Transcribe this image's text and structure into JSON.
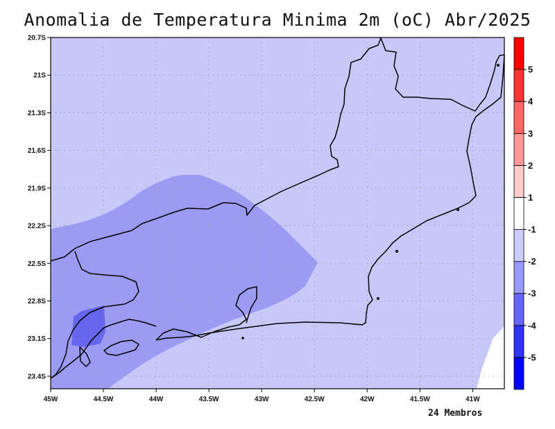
{
  "title": "Anomalia de Temperatura Minima 2m (oC) Abr/2025",
  "footnote": "24 Membros",
  "chart_data": {
    "type": "heatmap",
    "title": "Anomalia de Temperatura Minima 2m (oC) Abr/2025",
    "units": "oC",
    "lon_range": [
      -45,
      -40.7
    ],
    "lat_range": [
      -23.5,
      -20.7
    ],
    "xticks": [
      {
        "value": -45,
        "label": "45W"
      },
      {
        "value": -44.5,
        "label": "44.5W"
      },
      {
        "value": -44,
        "label": "44W"
      },
      {
        "value": -43.5,
        "label": "43.5W"
      },
      {
        "value": -43,
        "label": "43W"
      },
      {
        "value": -42.5,
        "label": "42.5W"
      },
      {
        "value": -42,
        "label": "42W"
      },
      {
        "value": -41.5,
        "label": "41.5W"
      },
      {
        "value": -41,
        "label": "41W"
      }
    ],
    "yticks": [
      {
        "value": -20.7,
        "label": "20.7S"
      },
      {
        "value": -21,
        "label": "21S"
      },
      {
        "value": -21.3,
        "label": "21.3S"
      },
      {
        "value": -21.6,
        "label": "21.6S"
      },
      {
        "value": -21.9,
        "label": "21.9S"
      },
      {
        "value": -22.2,
        "label": "22.2S"
      },
      {
        "value": -22.5,
        "label": "22.5S"
      },
      {
        "value": -22.8,
        "label": "22.8S"
      },
      {
        "value": -23.1,
        "label": "23.1S"
      },
      {
        "value": -23.4,
        "label": "23.4S"
      }
    ],
    "grid": true,
    "colorbar": {
      "bins": [
        {
          "color": "#0000ff"
        },
        {
          "color": "#3333ff"
        },
        {
          "color": "#6666ff"
        },
        {
          "color": "#9999ff"
        },
        {
          "color": "#ccccff"
        },
        {
          "color": "#ffffff"
        },
        {
          "color": "#ffcccc"
        },
        {
          "color": "#ff9999"
        },
        {
          "color": "#ff6666"
        },
        {
          "color": "#ff3333"
        },
        {
          "color": "#ff0000"
        }
      ],
      "labels": [
        "-5",
        "-4",
        "-3",
        "-2",
        "-1",
        "1",
        "2",
        "3",
        "4",
        "5"
      ]
    },
    "field_regions": [
      {
        "class": "-2 to -1",
        "color": "#c8c8f8",
        "description": "background over most of domain"
      },
      {
        "class": "-3 to -2",
        "color": "#9b9bf4",
        "description": "southwest region"
      },
      {
        "class": "-4 to -3",
        "color": "#6565ee",
        "description": "near 44.8W 23.0S"
      },
      {
        "class": "-1 to 1",
        "color": "#ffffff",
        "description": "southeast corner"
      }
    ]
  }
}
